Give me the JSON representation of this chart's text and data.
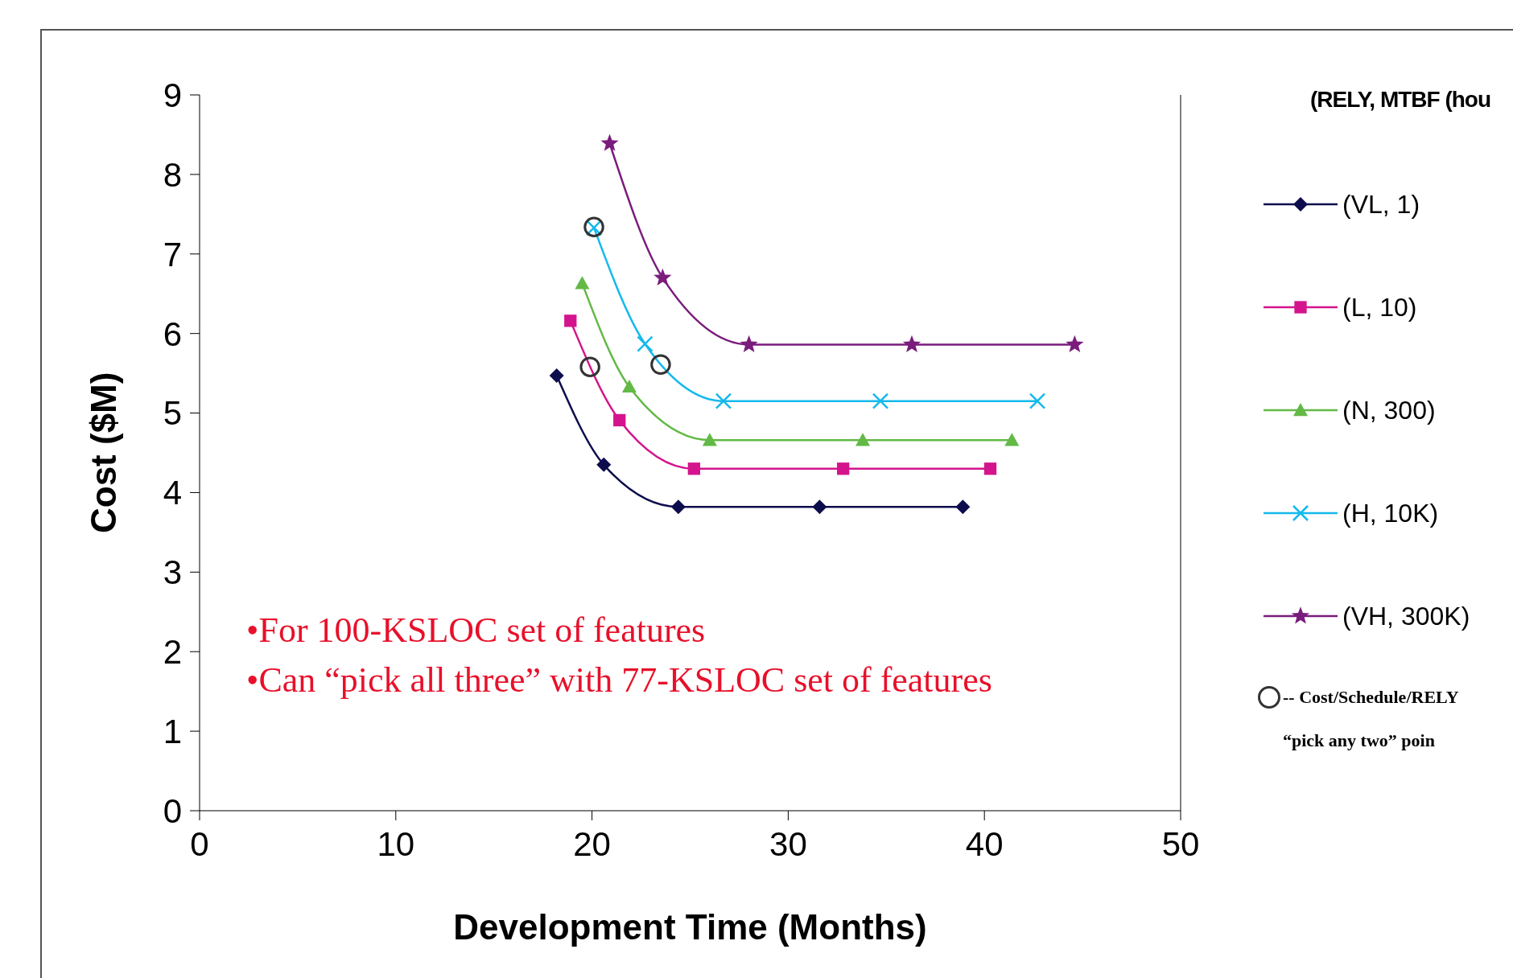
{
  "chart_data": {
    "type": "line",
    "xlabel": "Development Time (Months)",
    "ylabel": "Cost ($M)",
    "legend_title": "(RELY, MTBF (hou",
    "xlim": [
      0,
      50
    ],
    "xticks": [
      0,
      10,
      20,
      30,
      40,
      50
    ],
    "ylim": [
      0,
      9
    ],
    "yticks": [
      0,
      1,
      2,
      3,
      4,
      5,
      6,
      7,
      8,
      9
    ],
    "grid": false,
    "legend": "right",
    "line_style": "solid",
    "series": [
      {
        "name": "(VL, 1)",
        "color": "#0d0d4d",
        "marker": "diamond",
        "x": [
          18.2,
          20.6,
          24.4,
          31.6,
          38.9
        ],
        "values": [
          5.47,
          4.35,
          3.82,
          3.82,
          3.82
        ]
      },
      {
        "name": "(L, 10)",
        "color": "#d4148c",
        "marker": "square",
        "x": [
          18.9,
          21.4,
          25.2,
          32.8,
          40.3
        ],
        "values": [
          6.16,
          4.91,
          4.3,
          4.3,
          4.3
        ]
      },
      {
        "name": "(N, 300)",
        "color": "#63b946",
        "marker": "triangle",
        "x": [
          19.5,
          21.9,
          26.0,
          33.8,
          41.4
        ],
        "values": [
          6.63,
          5.33,
          4.66,
          4.66,
          4.66
        ]
      },
      {
        "name": "(H, 10K)",
        "color": "#14b9ec",
        "marker": "cross",
        "x": [
          20.1,
          22.7,
          26.7,
          34.7,
          42.7
        ],
        "values": [
          7.33,
          5.87,
          5.15,
          5.15,
          5.15
        ]
      },
      {
        "name": "(VH, 300K)",
        "color": "#7a1c7c",
        "marker": "star",
        "x": [
          20.9,
          23.6,
          28.0,
          36.3,
          44.6
        ],
        "values": [
          8.39,
          6.7,
          5.86,
          5.86,
          5.86
        ]
      },
      {
        "name": "-- Cost/Schedule/RELY\n“pick any two” poin",
        "type": "scatter",
        "color": "#333333",
        "marker": "circle",
        "x": [
          20.1,
          19.9,
          23.5
        ],
        "values": [
          7.34,
          5.58,
          5.61
        ]
      }
    ],
    "annotations": [
      "•For 100-KSLOC set of features",
      "•Can “pick all three” with 77-KSLOC set of features"
    ]
  }
}
